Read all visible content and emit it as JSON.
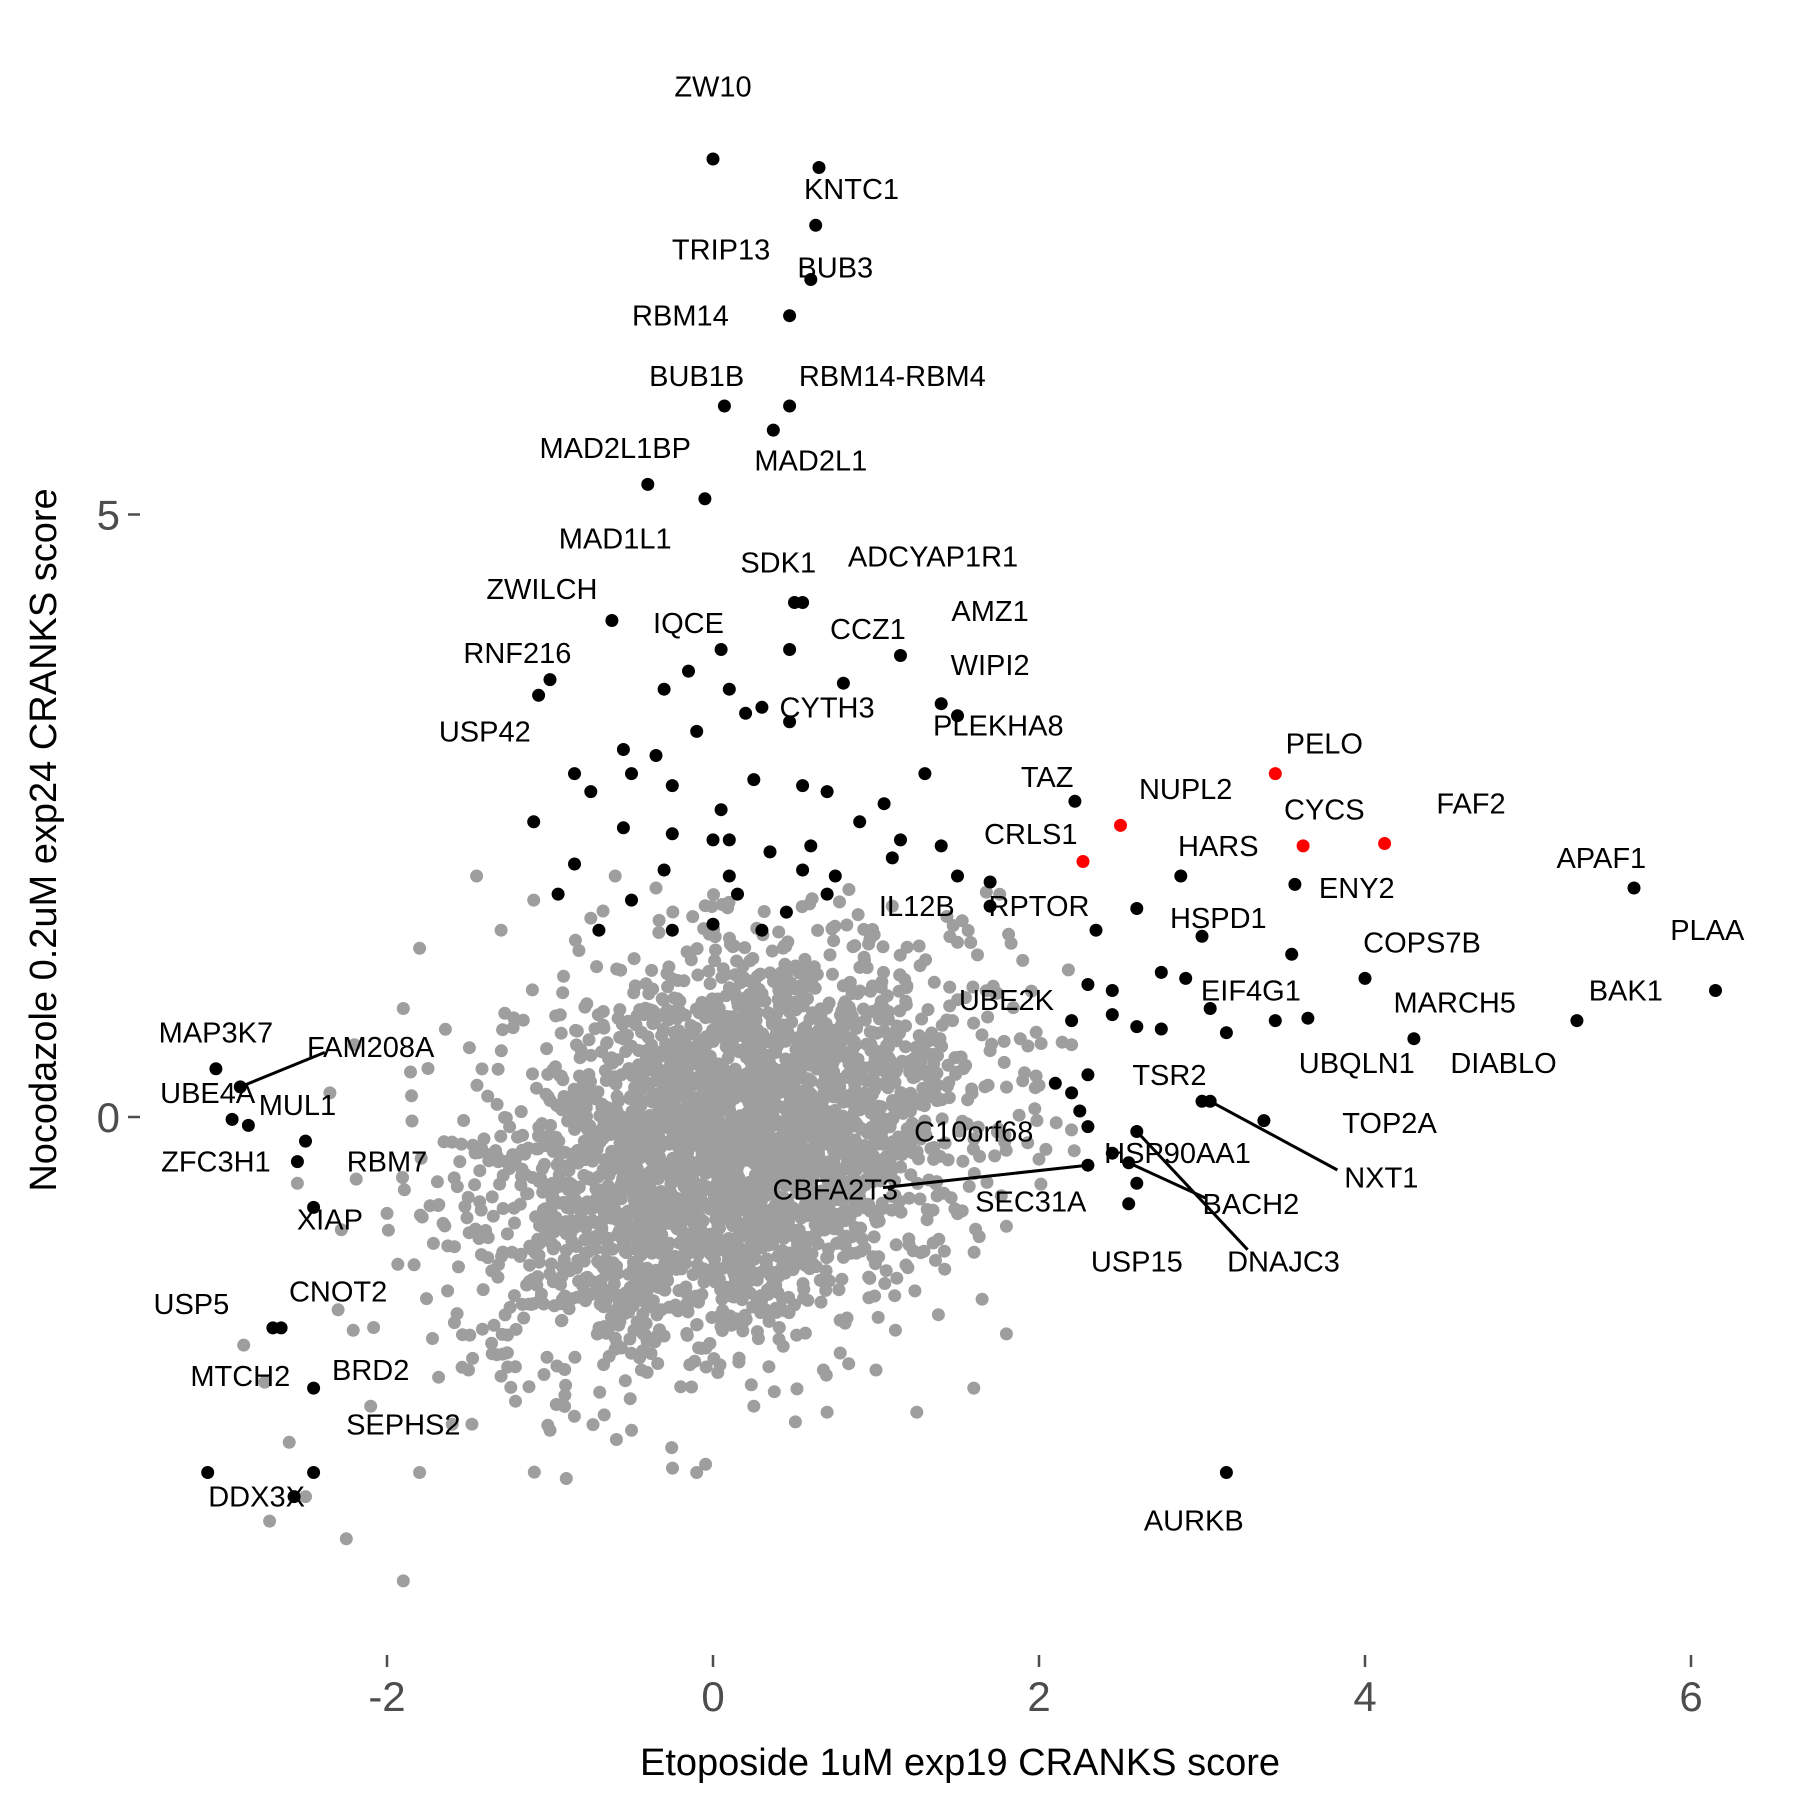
{
  "chart_data": {
    "type": "scatter",
    "xlabel": "Etoposide 1uM exp19 CRANKS score",
    "ylabel": "Nocodazole 0.2uM exp24 CRANKS score",
    "xlim": [
      -3.4,
      6.5
    ],
    "ylim": [
      -4.4,
      8.3
    ],
    "x_ticks": [
      -2,
      0,
      2,
      4,
      6
    ],
    "y_ticks": [
      0,
      5
    ],
    "x_tick_labels": [
      "-2",
      "0",
      "2",
      "4",
      "6"
    ],
    "y_tick_labels": [
      "0",
      "5"
    ],
    "grid": false,
    "legend": "none",
    "colors": {
      "background": "#9e9e9e",
      "hit": "#000000",
      "highlight": "#ff0000"
    },
    "background_cloud": {
      "n_points": 3200,
      "center": [
        0.1,
        -0.25
      ],
      "sd": [
        0.72,
        0.82
      ],
      "correlation": 0.28,
      "extra_points": [
        [
          -1.9,
          -3.85
        ],
        [
          -2.25,
          -3.5
        ],
        [
          -2.5,
          -3.15
        ],
        [
          -2.6,
          -2.7
        ],
        [
          -1.8,
          -2.95
        ],
        [
          -2.1,
          -2.4
        ],
        [
          -2.75,
          -2.2
        ],
        [
          -2.3,
          -1.6
        ],
        [
          -2.0,
          -0.8
        ],
        [
          -1.8,
          1.4
        ],
        [
          -1.3,
          1.55
        ],
        [
          -1.45,
          2.0
        ],
        [
          -1.1,
          1.8
        ],
        [
          -0.6,
          2.0
        ],
        [
          -0.35,
          1.9
        ],
        [
          -0.75,
          1.65
        ],
        [
          1.7,
          0.55
        ],
        [
          1.9,
          0.3
        ],
        [
          1.75,
          -0.1
        ],
        [
          2.0,
          -0.35
        ],
        [
          2.2,
          0.6
        ],
        [
          1.5,
          1.45
        ],
        [
          1.9,
          1.3
        ],
        [
          1.6,
          -2.25
        ],
        [
          1.8,
          -1.8
        ],
        [
          1.25,
          -2.45
        ],
        [
          -0.1,
          -2.95
        ],
        [
          0.25,
          -2.4
        ],
        [
          -0.5,
          -2.6
        ],
        [
          -1.0,
          -2.6
        ],
        [
          -1.5,
          -2.1
        ],
        [
          -2.35,
          0.2
        ],
        [
          -2.55,
          -0.55
        ],
        [
          -1.6,
          -2.55
        ],
        [
          -0.9,
          -3.0
        ],
        [
          0.7,
          -2.45
        ],
        [
          1.0,
          -2.1
        ],
        [
          -1.9,
          0.9
        ],
        [
          -2.2,
          0.6
        ],
        [
          1.1,
          1.75
        ]
      ]
    },
    "series": [
      {
        "color": "black",
        "points": [
          {
            "label": "ZW10",
            "x": 0.0,
            "y": 7.95
          },
          {
            "label": "KNTC1",
            "x": 0.65,
            "y": 7.88
          },
          {
            "label": "TRIP13",
            "x": 0.63,
            "y": 7.4
          },
          {
            "label": "BUB3",
            "x": 0.6,
            "y": 6.95
          },
          {
            "label": "RBM14",
            "x": 0.47,
            "y": 6.65
          },
          {
            "label": "BUB1B",
            "x": 0.07,
            "y": 5.9
          },
          {
            "label": "RBM14-RBM4",
            "x": 0.47,
            "y": 5.9
          },
          {
            "label": "MAD2L1BP",
            "x": -0.4,
            "y": 5.25
          },
          {
            "label": "MAD2L1",
            "x": 0.37,
            "y": 5.7
          },
          {
            "label": "MAD1L1",
            "x": -0.05,
            "y": 5.13
          },
          {
            "label": "SDK1",
            "x": 0.5,
            "y": 4.27
          },
          {
            "label": "ADCYAP1R1",
            "x": 0.55,
            "y": 4.27
          },
          {
            "label": "ZWILCH",
            "x": -0.62,
            "y": 4.12
          },
          {
            "label": "IQCE",
            "x": 0.05,
            "y": 3.88
          },
          {
            "label": "CCZ1",
            "x": 0.47,
            "y": 3.88
          },
          {
            "label": "AMZ1",
            "x": 1.15,
            "y": 3.83
          },
          {
            "label": "RNF216",
            "x": -1.0,
            "y": 3.63
          },
          {
            "label": "WIPI2",
            "x": 1.4,
            "y": 3.43
          },
          {
            "label": "USP42",
            "x": -1.07,
            "y": 3.5
          },
          {
            "label": "CYTH3",
            "x": 0.47,
            "y": 3.28
          },
          {
            "label": "PLEKHA8",
            "x": 1.5,
            "y": 3.33
          },
          {
            "label": "TAZ",
            "x": 2.22,
            "y": 2.62
          },
          {
            "label": "HARS",
            "x": 2.87,
            "y": 2.0
          },
          {
            "label": "APAF1",
            "x": 5.65,
            "y": 1.9
          },
          {
            "label": "ENY2",
            "x": 3.57,
            "y": 1.93
          },
          {
            "label": "IL12B",
            "x": 1.4,
            "y": 2.25
          },
          {
            "label": "RPTOR",
            "x": 2.35,
            "y": 1.55
          },
          {
            "label": "HSPD1",
            "x": 2.6,
            "y": 1.73
          },
          {
            "label": "PLAA",
            "x": 6.15,
            "y": 1.05
          },
          {
            "label": "COPS7B",
            "x": 4.0,
            "y": 1.15
          },
          {
            "label": "BAK1",
            "x": 5.3,
            "y": 0.8
          },
          {
            "label": "EIF4G1",
            "x": 3.05,
            "y": 0.9
          },
          {
            "label": "UBE2K",
            "x": 2.3,
            "y": 1.1
          },
          {
            "label": "MARCH5",
            "x": 3.65,
            "y": 0.82
          },
          {
            "label": "DIABLO",
            "x": 4.3,
            "y": 0.65
          },
          {
            "label": "UBQLN1",
            "x": 3.45,
            "y": 0.8
          },
          {
            "label": "TSR2",
            "x": 3.0,
            "y": 0.13
          },
          {
            "label": "TOP2A",
            "x": 3.38,
            "y": -0.03
          },
          {
            "label": "NXT1",
            "x": 3.05,
            "y": 0.13
          },
          {
            "label": "C10orf68",
            "x": 2.3,
            "y": -0.08
          },
          {
            "label": "HSP90AA1",
            "x": 2.45,
            "y": -0.3
          },
          {
            "label": "CBFA2T3",
            "x": 2.3,
            "y": -0.4
          },
          {
            "label": "SEC31A",
            "x": 2.6,
            "y": -0.55
          },
          {
            "label": "BACH2",
            "x": 2.55,
            "y": -0.38
          },
          {
            "label": "USP15",
            "x": 2.55,
            "y": -0.72
          },
          {
            "label": "DNAJC3",
            "x": 2.6,
            "y": -0.12
          },
          {
            "label": "AURKB",
            "x": 3.15,
            "y": -2.95
          },
          {
            "label": "MAP3K7",
            "x": -3.05,
            "y": 0.4
          },
          {
            "label": "FAM208A",
            "x": -2.9,
            "y": 0.25
          },
          {
            "label": "UBE4A",
            "x": -2.95,
            "y": -0.02
          },
          {
            "label": "MUL1",
            "x": -2.5,
            "y": -0.2
          },
          {
            "label": "ZFC3H1",
            "x": -2.85,
            "y": -0.07
          },
          {
            "label": "RBM7",
            "x": -2.55,
            "y": -0.37
          },
          {
            "label": "XIAP",
            "x": -2.45,
            "y": -0.75
          },
          {
            "label": "USP5",
            "x": -2.7,
            "y": -1.75
          },
          {
            "label": "CNOT2",
            "x": -2.65,
            "y": -1.75
          },
          {
            "label": "MTCH2",
            "x": -3.1,
            "y": -2.95
          },
          {
            "label": "BRD2",
            "x": -2.45,
            "y": -2.25
          },
          {
            "label": "SEPHS2",
            "x": -2.45,
            "y": -2.95
          },
          {
            "label": "DDX3X",
            "x": -2.57,
            "y": -3.15
          },
          {
            "x": -0.15,
            "y": 3.7
          },
          {
            "x": -0.3,
            "y": 3.55
          },
          {
            "x": 0.1,
            "y": 3.55
          },
          {
            "x": 0.3,
            "y": 3.4
          },
          {
            "x": 0.8,
            "y": 3.6
          },
          {
            "x": -0.55,
            "y": 3.05
          },
          {
            "x": -0.35,
            "y": 3.0
          },
          {
            "x": -0.85,
            "y": 2.85
          },
          {
            "x": -0.75,
            "y": 2.7
          },
          {
            "x": -0.25,
            "y": 2.75
          },
          {
            "x": 0.05,
            "y": 2.55
          },
          {
            "x": 0.55,
            "y": 2.75
          },
          {
            "x": 0.7,
            "y": 2.7
          },
          {
            "x": 0.9,
            "y": 2.45
          },
          {
            "x": 1.05,
            "y": 2.6
          },
          {
            "x": 1.15,
            "y": 2.3
          },
          {
            "x": -1.1,
            "y": 2.45
          },
          {
            "x": -0.85,
            "y": 2.1
          },
          {
            "x": -0.55,
            "y": 2.4
          },
          {
            "x": -0.25,
            "y": 2.35
          },
          {
            "x": 0.1,
            "y": 2.3
          },
          {
            "x": 0.35,
            "y": 2.2
          },
          {
            "x": 0.6,
            "y": 2.25
          },
          {
            "x": 0.75,
            "y": 2.0
          },
          {
            "x": 1.5,
            "y": 2.0
          },
          {
            "x": 1.7,
            "y": 1.75
          },
          {
            "x": -0.95,
            "y": 1.85
          },
          {
            "x": -0.5,
            "y": 1.8
          },
          {
            "x": -0.3,
            "y": 2.05
          },
          {
            "x": 0.15,
            "y": 1.85
          },
          {
            "x": 0.45,
            "y": 1.7
          },
          {
            "x": 0.55,
            "y": 2.05
          },
          {
            "x": 0.7,
            "y": 1.85
          },
          {
            "x": 1.1,
            "y": 2.15
          },
          {
            "x": -0.25,
            "y": 1.55
          },
          {
            "x": 0.0,
            "y": 1.6
          },
          {
            "x": 0.3,
            "y": 1.55
          },
          {
            "x": -0.7,
            "y": 1.55
          },
          {
            "x": 0.1,
            "y": 2.0
          },
          {
            "x": 0.0,
            "y": 2.3
          },
          {
            "x": 0.25,
            "y": 2.8
          },
          {
            "x": -0.1,
            "y": 3.2
          },
          {
            "x": 0.2,
            "y": 3.35
          },
          {
            "x": -0.5,
            "y": 2.85
          },
          {
            "x": 1.3,
            "y": 2.85
          },
          {
            "x": 1.7,
            "y": 1.95
          },
          {
            "x": 2.45,
            "y": 1.05
          },
          {
            "x": 2.75,
            "y": 1.2
          },
          {
            "x": 2.9,
            "y": 1.15
          },
          {
            "x": 2.2,
            "y": 0.8
          },
          {
            "x": 2.45,
            "y": 0.85
          },
          {
            "x": 2.6,
            "y": 0.75
          },
          {
            "x": 2.75,
            "y": 0.73
          },
          {
            "x": 3.0,
            "y": 1.5
          },
          {
            "x": 3.15,
            "y": 0.7
          },
          {
            "x": 3.55,
            "y": 1.35
          },
          {
            "x": 2.3,
            "y": 0.35
          },
          {
            "x": 2.2,
            "y": 0.2
          },
          {
            "x": 2.1,
            "y": 0.28
          },
          {
            "x": 2.25,
            "y": 0.05
          }
        ]
      },
      {
        "color": "red",
        "points": [
          {
            "label": "PELO",
            "x": 3.45,
            "y": 2.85
          },
          {
            "label": "NUPL2",
            "x": 2.5,
            "y": 2.42
          },
          {
            "label": "CYCS",
            "x": 3.62,
            "y": 2.25
          },
          {
            "label": "FAF2",
            "x": 4.12,
            "y": 2.27
          },
          {
            "label": "CRLS1",
            "x": 2.27,
            "y": 2.12
          }
        ]
      }
    ],
    "labels": [
      {
        "text": "ZW10",
        "lx": 0.0,
        "ly": 8.55
      },
      {
        "text": "KNTC1",
        "lx": 0.85,
        "ly": 7.7
      },
      {
        "text": "TRIP13",
        "lx": 0.05,
        "ly": 7.2
      },
      {
        "text": "BUB3",
        "lx": 0.75,
        "ly": 7.05
      },
      {
        "text": "RBM14",
        "lx": -0.2,
        "ly": 6.65
      },
      {
        "text": "BUB1B",
        "lx": -0.1,
        "ly": 6.15
      },
      {
        "text": "RBM14-RBM4",
        "lx": 1.1,
        "ly": 6.15
      },
      {
        "text": "MAD2L1BP",
        "lx": -0.6,
        "ly": 5.55
      },
      {
        "text": "MAD2L1",
        "lx": 0.6,
        "ly": 5.45
      },
      {
        "text": "MAD1L1",
        "lx": -0.6,
        "ly": 4.8
      },
      {
        "text": "SDK1",
        "lx": 0.4,
        "ly": 4.6
      },
      {
        "text": "ADCYAP1R1",
        "lx": 1.35,
        "ly": 4.65
      },
      {
        "text": "ZWILCH",
        "lx": -1.05,
        "ly": 4.38
      },
      {
        "text": "IQCE",
        "lx": -0.15,
        "ly": 4.1
      },
      {
        "text": "CCZ1",
        "lx": 0.95,
        "ly": 4.05
      },
      {
        "text": "AMZ1",
        "lx": 1.7,
        "ly": 4.2
      },
      {
        "text": "RNF216",
        "lx": -1.2,
        "ly": 3.85
      },
      {
        "text": "WIPI2",
        "lx": 1.7,
        "ly": 3.75
      },
      {
        "text": "USP42",
        "lx": -1.4,
        "ly": 3.2
      },
      {
        "text": "CYTH3",
        "lx": 0.7,
        "ly": 3.4
      },
      {
        "text": "PLEKHA8",
        "lx": 1.75,
        "ly": 3.25
      },
      {
        "text": "TAZ",
        "lx": 2.05,
        "ly": 2.82
      },
      {
        "text": "NUPL2",
        "lx": 2.9,
        "ly": 2.72
      },
      {
        "text": "PELO",
        "lx": 3.75,
        "ly": 3.1
      },
      {
        "text": "CYCS",
        "lx": 3.75,
        "ly": 2.55
      },
      {
        "text": "FAF2",
        "lx": 4.65,
        "ly": 2.6
      },
      {
        "text": "CRLS1",
        "lx": 1.95,
        "ly": 2.35
      },
      {
        "text": "HARS",
        "lx": 3.1,
        "ly": 2.25
      },
      {
        "text": "APAF1",
        "lx": 5.45,
        "ly": 2.15
      },
      {
        "text": "ENY2",
        "lx": 3.95,
        "ly": 1.9
      },
      {
        "text": "IL12B",
        "lx": 1.25,
        "ly": 1.75
      },
      {
        "text": "RPTOR",
        "lx": 2.0,
        "ly": 1.75
      },
      {
        "text": "HSPD1",
        "lx": 3.1,
        "ly": 1.65
      },
      {
        "text": "PLAA",
        "lx": 6.1,
        "ly": 1.55
      },
      {
        "text": "COPS7B",
        "lx": 4.35,
        "ly": 1.45
      },
      {
        "text": "BAK1",
        "lx": 5.6,
        "ly": 1.05
      },
      {
        "text": "EIF4G1",
        "lx": 3.3,
        "ly": 1.05
      },
      {
        "text": "UBE2K",
        "lx": 1.8,
        "ly": 0.97
      },
      {
        "text": "MARCH5",
        "lx": 4.55,
        "ly": 0.95
      },
      {
        "text": "DIABLO",
        "lx": 4.85,
        "ly": 0.45
      },
      {
        "text": "UBQLN1",
        "lx": 3.95,
        "ly": 0.45
      },
      {
        "text": "TSR2",
        "lx": 2.8,
        "ly": 0.35
      },
      {
        "text": "TOP2A",
        "lx": 4.15,
        "ly": -0.05
      },
      {
        "text": "NXT1",
        "lx": 4.1,
        "ly": -0.5,
        "line_to_point": true
      },
      {
        "text": "C10orf68",
        "lx": 1.6,
        "ly": -0.12
      },
      {
        "text": "HSP90AA1",
        "lx": 2.85,
        "ly": -0.3
      },
      {
        "text": "CBFA2T3",
        "lx": 0.75,
        "ly": -0.6,
        "line_to_point": true
      },
      {
        "text": "SEC31A",
        "lx": 1.95,
        "ly": -0.7
      },
      {
        "text": "BACH2",
        "lx": 3.3,
        "ly": -0.72,
        "line_to_point": true
      },
      {
        "text": "USP15",
        "lx": 2.6,
        "ly": -1.2
      },
      {
        "text": "DNAJC3",
        "lx": 3.5,
        "ly": -1.2,
        "line_to_point": true
      },
      {
        "text": "AURKB",
        "lx": 2.95,
        "ly": -3.35
      },
      {
        "text": "MAP3K7",
        "lx": -3.05,
        "ly": 0.7
      },
      {
        "text": "FAM208A",
        "lx": -2.1,
        "ly": 0.58,
        "line_to_point": true
      },
      {
        "text": "UBE4A",
        "lx": -3.1,
        "ly": 0.2
      },
      {
        "text": "MUL1",
        "lx": -2.55,
        "ly": 0.1
      },
      {
        "text": "ZFC3H1",
        "lx": -3.05,
        "ly": -0.37
      },
      {
        "text": "RBM7",
        "lx": -2.0,
        "ly": -0.37
      },
      {
        "text": "XIAP",
        "lx": -2.35,
        "ly": -0.85
      },
      {
        "text": "USP5",
        "lx": -3.2,
        "ly": -1.55
      },
      {
        "text": "CNOT2",
        "lx": -2.3,
        "ly": -1.45
      },
      {
        "text": "MTCH2",
        "lx": -2.9,
        "ly": -2.15
      },
      {
        "text": "BRD2",
        "lx": -2.1,
        "ly": -2.1
      },
      {
        "text": "SEPHS2",
        "lx": -1.9,
        "ly": -2.55
      },
      {
        "text": "DDX3X",
        "lx": -2.8,
        "ly": -3.15
      }
    ]
  }
}
